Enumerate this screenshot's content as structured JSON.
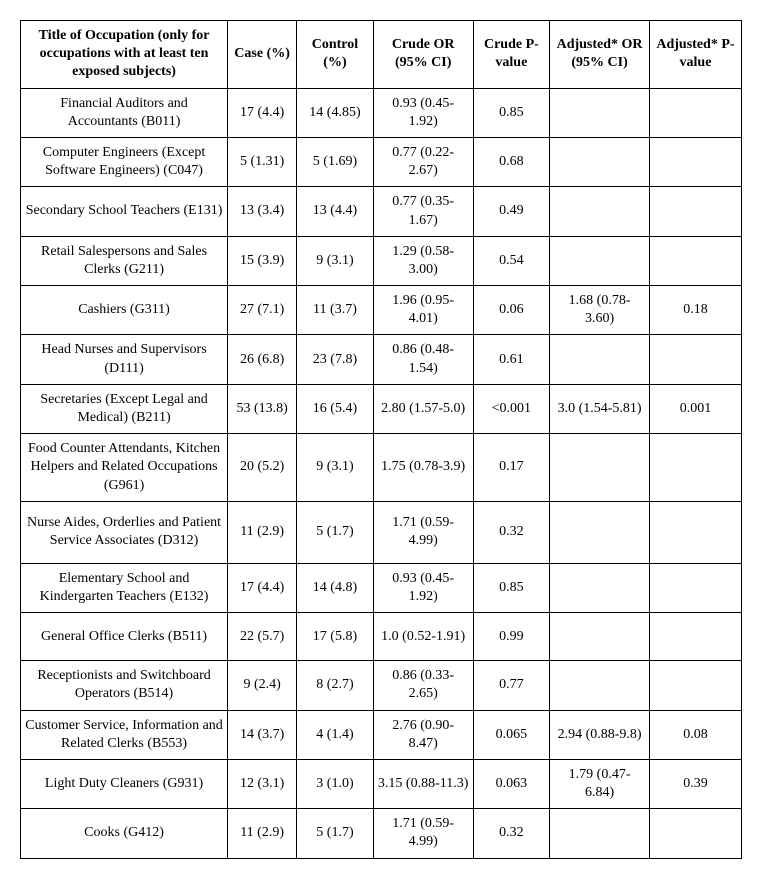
{
  "table": {
    "columns": [
      "Title of Occupation (only for occupations with at least ten exposed subjects)",
      "Case (%)",
      "Control (%)",
      "Crude OR (95% CI)",
      "Crude P-value",
      "Adjusted* OR (95% CI)",
      "Adjusted* P-value"
    ],
    "rows": [
      {
        "title": "Financial Auditors and Accountants (B011)",
        "case": "17 (4.4)",
        "control": "14 (4.85)",
        "crude_or": "0.93 (0.45-1.92)",
        "crude_p": "0.85",
        "adj_or": "",
        "adj_p": ""
      },
      {
        "title": "Computer Engineers (Except Software Engineers) (C047)",
        "case": "5 (1.31)",
        "control": "5 (1.69)",
        "crude_or": "0.77 (0.22-2.67)",
        "crude_p": "0.68",
        "adj_or": "",
        "adj_p": ""
      },
      {
        "title": "Secondary School Teachers (E131)",
        "case": "13 (3.4)",
        "control": "13 (4.4)",
        "crude_or": "0.77 (0.35-1.67)",
        "crude_p": "0.49",
        "adj_or": "",
        "adj_p": ""
      },
      {
        "title": "Retail Salespersons and Sales Clerks (G211)",
        "case": "15 (3.9)",
        "control": "9 (3.1)",
        "crude_or": "1.29 (0.58-3.00)",
        "crude_p": "0.54",
        "adj_or": "",
        "adj_p": ""
      },
      {
        "title": "Cashiers (G311)",
        "case": "27 (7.1)",
        "control": "11 (3.7)",
        "crude_or": "1.96 (0.95-4.01)",
        "crude_p": "0.06",
        "adj_or": "1.68 (0.78-3.60)",
        "adj_p": "0.18"
      },
      {
        "title": "Head Nurses and Supervisors (D111)",
        "case": "26 (6.8)",
        "control": "23 (7.8)",
        "crude_or": "0.86 (0.48-1.54)",
        "crude_p": "0.61",
        "adj_or": "",
        "adj_p": ""
      },
      {
        "title": "Secretaries (Except Legal and Medical) (B211)",
        "case": "53 (13.8)",
        "control": "16 (5.4)",
        "crude_or": "2.80 (1.57-5.0)",
        "crude_p": "<0.001",
        "adj_or": "3.0 (1.54-5.81)",
        "adj_p": "0.001"
      },
      {
        "title": "Food Counter Attendants, Kitchen Helpers and Related Occupations (G961)",
        "case": "20 (5.2)",
        "control": "9 (3.1)",
        "crude_or": "1.75 (0.78-3.9)",
        "crude_p": "0.17",
        "adj_or": "",
        "adj_p": "",
        "tall": true
      },
      {
        "title": "Nurse Aides, Orderlies and Patient Service Associates (D312)",
        "case": "11 (2.9)",
        "control": "5 (1.7)",
        "crude_or": "1.71 (0.59-4.99)",
        "crude_p": "0.32",
        "adj_or": "",
        "adj_p": "",
        "tall": true
      },
      {
        "title": "Elementary School and Kindergarten Teachers (E132)",
        "case": "17 (4.4)",
        "control": "14 (4.8)",
        "crude_or": "0.93 (0.45-1.92)",
        "crude_p": "0.85",
        "adj_or": "",
        "adj_p": ""
      },
      {
        "title": "General Office Clerks (B511)",
        "case": "22 (5.7)",
        "control": "17 (5.8)",
        "crude_or": "1.0 (0.52-1.91)",
        "crude_p": "0.99",
        "adj_or": "",
        "adj_p": ""
      },
      {
        "title": "Receptionists and Switchboard Operators (B514)",
        "case": "9 (2.4)",
        "control": "8 (2.7)",
        "crude_or": "0.86 (0.33-2.65)",
        "crude_p": "0.77",
        "adj_or": "",
        "adj_p": ""
      },
      {
        "title": "Customer Service, Information and Related Clerks (B553)",
        "case": "14 (3.7)",
        "control": "4 (1.4)",
        "crude_or": "2.76 (0.90-8.47)",
        "crude_p": "0.065",
        "adj_or": "2.94 (0.88-9.8)",
        "adj_p": "0.08"
      },
      {
        "title": "Light Duty Cleaners (G931)",
        "case": "12 (3.1)",
        "control": "3 (1.0)",
        "crude_or": "3.15 (0.88-11.3)",
        "crude_p": "0.063",
        "adj_or": "1.79 (0.47-6.84)",
        "adj_p": "0.39"
      },
      {
        "title": "Cooks (G412)",
        "case": "11 (2.9)",
        "control": "5 (1.7)",
        "crude_or": "1.71 (0.59-4.99)",
        "crude_p": "0.32",
        "adj_or": "",
        "adj_p": ""
      }
    ],
    "styling": {
      "border_color": "#000000",
      "background_color": "#ffffff",
      "font_family": "Times New Roman",
      "header_font_weight": "bold",
      "cell_font_size": 14,
      "text_align": "center"
    }
  }
}
